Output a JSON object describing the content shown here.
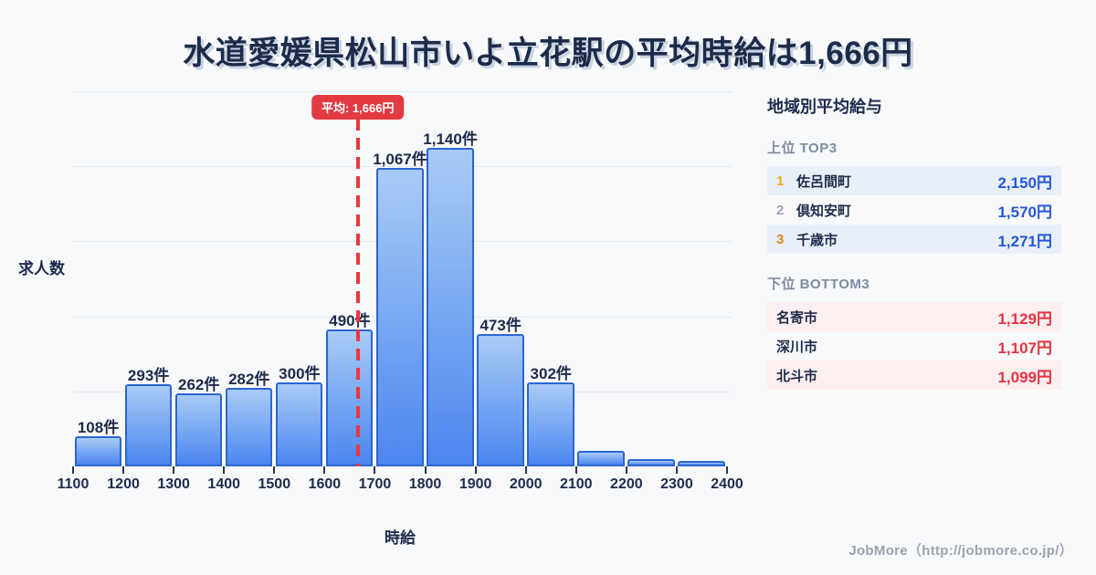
{
  "title": "水道愛媛県松山市いよ立花駅の平均時給は1,666円",
  "chart_data": {
    "type": "bar",
    "title": "水道愛媛県松山市いよ立花駅の平均時給は1,666円",
    "xlabel": "時給",
    "ylabel": "求人数",
    "bin_width": 100,
    "x_ticks": [
      1100,
      1200,
      1300,
      1400,
      1500,
      1600,
      1700,
      1800,
      1900,
      2000,
      2100,
      2200,
      2300,
      2400
    ],
    "values": [
      108,
      293,
      262,
      282,
      300,
      490,
      1067,
      1140,
      473,
      302,
      56,
      26,
      21
    ],
    "bar_labels": [
      "108件",
      "293件",
      "262件",
      "282件",
      "300件",
      "490件",
      "1,067件",
      "1,140件",
      "473件",
      "302件",
      "",
      "",
      ""
    ],
    "average": 1666,
    "average_label": "平均: 1,666円",
    "xlim": [
      1100,
      2400
    ],
    "ylim": [
      0,
      1343
    ],
    "grid": "horizontal",
    "legend": "none"
  },
  "sidebar": {
    "title": "地域別平均給与",
    "top_section": {
      "heading": "上位 TOP3",
      "rows": [
        {
          "rank": "1",
          "name": "佐呂間町",
          "value": "2,150円"
        },
        {
          "rank": "2",
          "name": "倶知安町",
          "value": "1,570円"
        },
        {
          "rank": "3",
          "name": "千歳市",
          "value": "1,271円"
        }
      ]
    },
    "bottom_section": {
      "heading": "下位 BOTTOM3",
      "rows": [
        {
          "name": "名寄市",
          "value": "1,129円"
        },
        {
          "name": "深川市",
          "value": "1,107円"
        },
        {
          "name": "北斗市",
          "value": "1,099円"
        }
      ]
    }
  },
  "footer": {
    "credit": "JobMore（http://jobmore.co.jp/）"
  },
  "colors": {
    "background": "#f8f9fb",
    "text_dark": "#1d2b4b",
    "muted_gray": "#7e8ba0",
    "bar_gradient_top": "#a9cbf5",
    "bar_gradient_bottom": "#4b86f0",
    "bar_border": "#2a66d0",
    "average_red": "#e8383f",
    "top_value_blue": "#2458db",
    "bottom_value_red": "#e63340",
    "rank1_gold": "#f0a91d",
    "rank2_gray": "#9aa4b5",
    "rank3_orange": "#e2841f",
    "row_blue_bg": "#e9eff9",
    "row_pink_bg": "#fdeef0"
  }
}
